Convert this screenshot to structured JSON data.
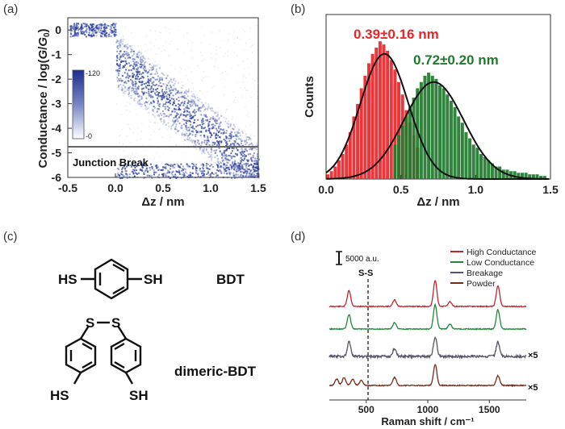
{
  "panels": {
    "a": {
      "label": "(a)",
      "ylabel": "Conductance / log(G/G0)",
      "ylabel_parts": [
        "Conductance / log(",
        "G",
        "/",
        "G",
        "0",
        ")"
      ],
      "xlabel": "Δz / nm",
      "xticks": [
        "-0.5",
        "0.0",
        "0.5",
        "1.0",
        "1.5"
      ],
      "yticks": [
        "0",
        "-1",
        "-2",
        "-3",
        "-4",
        "-5",
        "-6"
      ],
      "annotation": "Junction Break",
      "colorbar_max": "120",
      "colorbar_min": "0",
      "colors": {
        "density": "#2a3f9e",
        "line": "#666666"
      }
    },
    "b": {
      "label": "(b)",
      "ylabel": "Counts",
      "xlabel": "Δz / nm",
      "xticks": [
        "0.0",
        "0.5",
        "1.0",
        "1.5"
      ],
      "red_label": "0.39±0.16 nm",
      "green_label": "0.72±0.20 nm",
      "colors": {
        "red": "#e8262a",
        "green": "#1f7a2e"
      }
    },
    "c": {
      "label": "(c)",
      "bdt_hs": "HS",
      "bdt_sh": "SH",
      "bdt_name": "BDT",
      "dimer_s1": "S",
      "dimer_s2": "S",
      "dimer_hs": "HS",
      "dimer_sh": "SH",
      "dimer_name": "dimeric-BDT"
    },
    "d": {
      "label": "(d)",
      "scalebar": "5000 a.u.",
      "ss_label": "S-S",
      "xlabel": "Raman shift / cm⁻¹",
      "xticks": [
        "500",
        "1000",
        "1500"
      ],
      "legend": [
        {
          "name": "High Conductance",
          "color": "#c0282d"
        },
        {
          "name": "Low Conductance",
          "color": "#1f8a3a"
        },
        {
          "name": "Breakage",
          "color": "#555566"
        },
        {
          "name": "Powder",
          "color": "#7a2a1a"
        }
      ],
      "multipliers": [
        "×5",
        "×5"
      ]
    }
  },
  "chart_data": [
    {
      "type": "heatmap",
      "xlabel": "Δz / nm",
      "ylabel": "Conductance / log(G/G0)",
      "xlim": [
        -0.5,
        1.5
      ],
      "ylim": [
        -6,
        0.5
      ],
      "colorbar": [
        0,
        120
      ],
      "annotation": "Junction Break",
      "break_line_y": -4.8
    },
    {
      "type": "bar",
      "xlabel": "Δz / nm",
      "ylabel": "Counts",
      "xlim": [
        0,
        1.5
      ],
      "series": [
        {
          "name": "0.39±0.16 nm",
          "color": "#e8262a",
          "mean": 0.39,
          "sd": 0.16,
          "x": [
            0.0,
            0.025,
            0.05,
            0.075,
            0.1,
            0.125,
            0.15,
            0.175,
            0.2,
            0.225,
            0.25,
            0.275,
            0.3,
            0.325,
            0.35,
            0.375,
            0.4,
            0.425,
            0.45,
            0.475,
            0.5,
            0.525,
            0.55,
            0.575,
            0.6
          ],
          "values": [
            3,
            5,
            8,
            12,
            16,
            22,
            30,
            40,
            48,
            58,
            66,
            74,
            80,
            84,
            88,
            86,
            82,
            76,
            70,
            62,
            54,
            44,
            36,
            28,
            20
          ]
        },
        {
          "name": "0.72±0.20 nm",
          "color": "#1f7a2e",
          "mean": 0.72,
          "sd": 0.2,
          "x": [
            0.45,
            0.475,
            0.5,
            0.525,
            0.55,
            0.575,
            0.6,
            0.625,
            0.65,
            0.675,
            0.7,
            0.725,
            0.75,
            0.775,
            0.8,
            0.825,
            0.85,
            0.875,
            0.9,
            0.925,
            0.95,
            0.975,
            1.0,
            1.025,
            1.05,
            1.075,
            1.1,
            1.125,
            1.15,
            1.175,
            1.2,
            1.225,
            1.25,
            1.275,
            1.3,
            1.325,
            1.35,
            1.375,
            1.4,
            1.425,
            1.45
          ],
          "values": [
            22,
            28,
            34,
            40,
            46,
            52,
            58,
            62,
            66,
            68,
            66,
            64,
            60,
            58,
            54,
            50,
            46,
            40,
            36,
            30,
            26,
            22,
            20,
            16,
            14,
            12,
            10,
            8,
            8,
            6,
            6,
            5,
            5,
            4,
            4,
            4,
            3,
            3,
            3,
            2,
            2
          ]
        }
      ]
    },
    {
      "type": "line",
      "xlabel": "Raman shift / cm⁻¹",
      "xlim": [
        200,
        1800
      ],
      "series": [
        {
          "name": "High Conductance",
          "peaks": [
            360,
            730,
            1060,
            1180,
            1570
          ]
        },
        {
          "name": "Low Conductance",
          "peaks": [
            360,
            730,
            1060,
            1180,
            1570
          ]
        },
        {
          "name": "Breakage",
          "peaks": [
            360,
            730,
            1060,
            1570
          ]
        },
        {
          "name": "Powder",
          "peaks": [
            260,
            320,
            390,
            460,
            730,
            1060,
            1570
          ]
        }
      ]
    }
  ]
}
